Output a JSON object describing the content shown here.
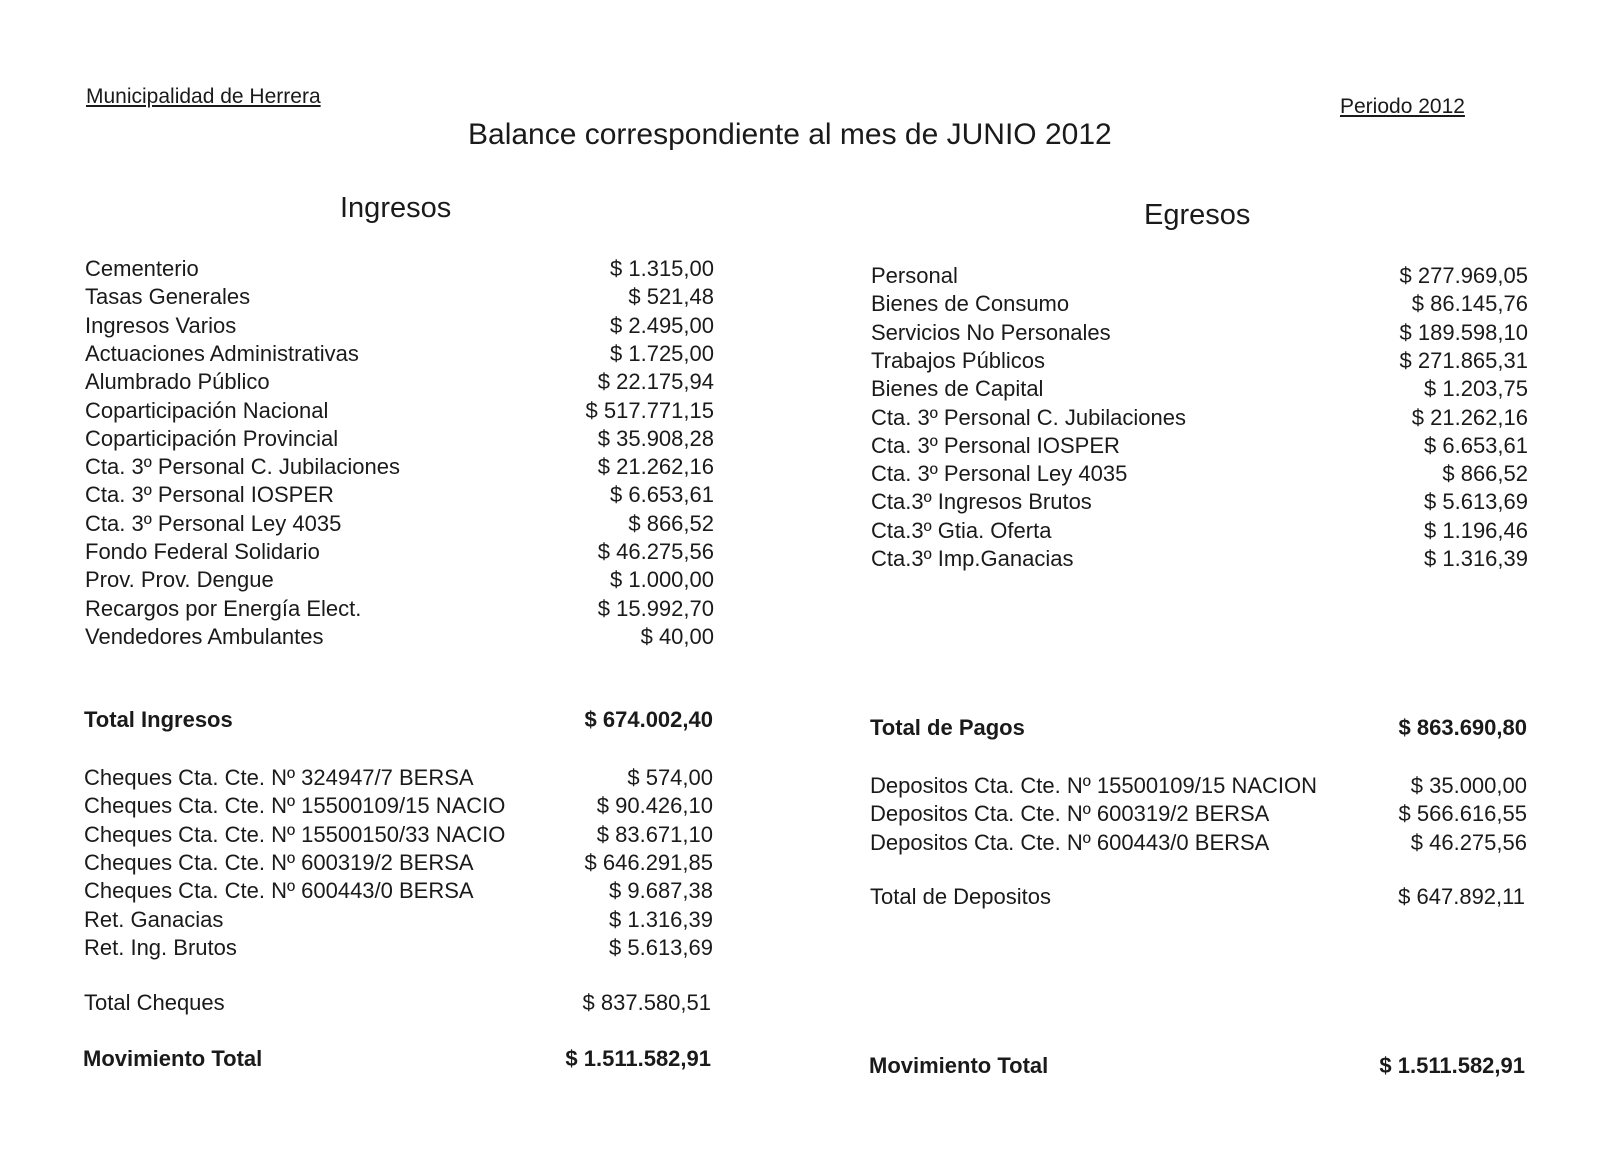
{
  "header": {
    "org": "Municipalidad de Herrera",
    "period": "Periodo 2012",
    "title": "Balance correspondiente al mes de JUNIO 2012"
  },
  "ingresos": {
    "heading": "Ingresos",
    "items": [
      {
        "label": "Cementerio",
        "amount": "$ 1.315,00"
      },
      {
        "label": "Tasas Generales",
        "amount": "$ 521,48"
      },
      {
        "label": "Ingresos Varios",
        "amount": "$ 2.495,00"
      },
      {
        "label": "Actuaciones Administrativas",
        "amount": "$ 1.725,00"
      },
      {
        "label": "Alumbrado Público",
        "amount": "$ 22.175,94"
      },
      {
        "label": "Coparticipación Nacional",
        "amount": "$ 517.771,15"
      },
      {
        "label": "Coparticipación Provincial",
        "amount": "$ 35.908,28"
      },
      {
        "label": "Cta. 3º Personal C. Jubilaciones",
        "amount": "$ 21.262,16"
      },
      {
        "label": "Cta. 3º Personal IOSPER",
        "amount": "$ 6.653,61"
      },
      {
        "label": "Cta. 3º Personal Ley 4035",
        "amount": "$ 866,52"
      },
      {
        "label": "Fondo Federal Solidario",
        "amount": "$ 46.275,56"
      },
      {
        "label": "Prov. Prov. Dengue",
        "amount": "$ 1.000,00"
      },
      {
        "label": "Recargos por Energía Elect.",
        "amount": "$ 15.992,70"
      },
      {
        "label": "Vendedores Ambulantes",
        "amount": "$ 40,00"
      }
    ],
    "total": {
      "label": "Total Ingresos",
      "amount": "$ 674.002,40"
    },
    "cheques": [
      {
        "label": "Cheques Cta. Cte. Nº 324947/7 BERSA",
        "amount": "$ 574,00"
      },
      {
        "label": "Cheques Cta. Cte. Nº 15500109/15 NACIO",
        "amount": "$ 90.426,10"
      },
      {
        "label": "Cheques Cta. Cte. Nº 15500150/33 NACIO",
        "amount": "$ 83.671,10"
      },
      {
        "label": "Cheques Cta. Cte. Nº 600319/2 BERSA",
        "amount": "$ 646.291,85"
      },
      {
        "label": "Cheques Cta. Cte. Nº 600443/0 BERSA",
        "amount": "$ 9.687,38"
      },
      {
        "label": "Ret. Ganacias",
        "amount": "$ 1.316,39"
      },
      {
        "label": "Ret. Ing. Brutos",
        "amount": "$ 5.613,69"
      }
    ],
    "total_cheques": {
      "label": "Total Cheques",
      "amount": "$ 837.580,51"
    },
    "movimiento": {
      "label": "Movimiento Total",
      "amount": "$ 1.511.582,91"
    }
  },
  "egresos": {
    "heading": "Egresos",
    "items": [
      {
        "label": "Personal",
        "amount": "$ 277.969,05"
      },
      {
        "label": "Bienes de Consumo",
        "amount": "$ 86.145,76"
      },
      {
        "label": "Servicios No Personales",
        "amount": "$ 189.598,10"
      },
      {
        "label": "Trabajos Públicos",
        "amount": "$ 271.865,31"
      },
      {
        "label": "Bienes de Capital",
        "amount": "$ 1.203,75"
      },
      {
        "label": "Cta. 3º Personal C. Jubilaciones",
        "amount": "$ 21.262,16"
      },
      {
        "label": "Cta. 3º Personal IOSPER",
        "amount": "$ 6.653,61"
      },
      {
        "label": "Cta. 3º Personal Ley 4035",
        "amount": "$ 866,52"
      },
      {
        "label": "Cta.3º Ingresos Brutos",
        "amount": "$ 5.613,69"
      },
      {
        "label": "Cta.3º Gtia. Oferta",
        "amount": "$ 1.196,46"
      },
      {
        "label": "Cta.3º Imp.Ganacias",
        "amount": "$ 1.316,39"
      }
    ],
    "total": {
      "label": "Total de Pagos",
      "amount": "$ 863.690,80"
    },
    "depositos": [
      {
        "label": "Depositos Cta. Cte. Nº 15500109/15 NACION",
        "amount": "$ 35.000,00"
      },
      {
        "label": "Depositos Cta. Cte. Nº 600319/2 BERSA",
        "amount": "$ 566.616,55"
      },
      {
        "label": "Depositos Cta. Cte. Nº 600443/0 BERSA",
        "amount": "$ 46.275,56"
      }
    ],
    "total_depositos": {
      "label": "Total de Depositos",
      "amount": "$ 647.892,11"
    },
    "movimiento": {
      "label": "Movimiento Total",
      "amount": "$ 1.511.582,91"
    }
  }
}
